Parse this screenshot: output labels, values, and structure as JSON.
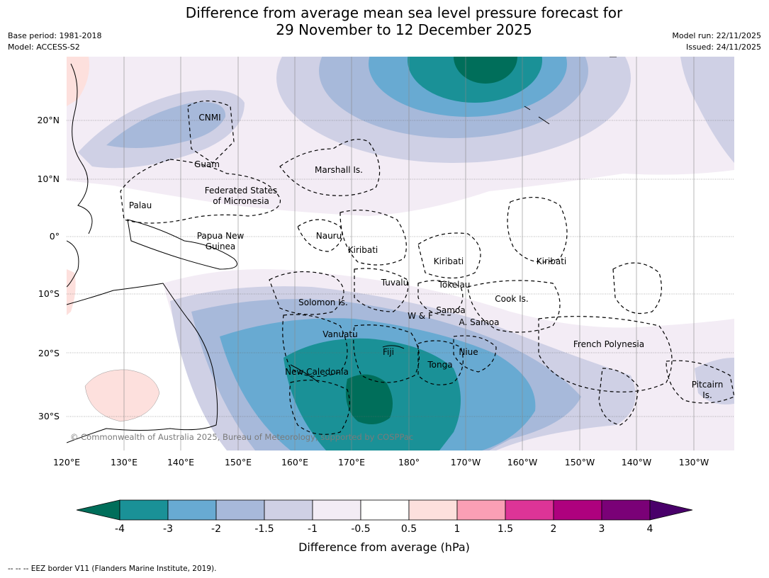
{
  "title": {
    "line1": "Difference from average mean sea level pressure forecast for",
    "line2": "29 November to 12 December 2025"
  },
  "meta": {
    "base_period": "Base period: 1981-2018",
    "model": "Model: ACCESS-S2",
    "model_run": "Model run: 22/11/2025",
    "issued": "Issued: 24/11/2025"
  },
  "map": {
    "lon_labels": [
      "120°E",
      "130°E",
      "140°E",
      "150°E",
      "160°E",
      "170°E",
      "180°",
      "170°W",
      "160°W",
      "150°W",
      "140°W",
      "130°W"
    ],
    "lat_labels": [
      "20°N",
      "10°N",
      "0°",
      "10°S",
      "20°S",
      "30°S"
    ],
    "regions": [
      "CNMI",
      "Guam",
      "Marshall Is.",
      "Federated States",
      "of Micronesia",
      "Palau",
      "Papua New",
      "Guinea",
      "Nauru",
      "Kiribati",
      "Kiribati",
      "Kiribati",
      "Tuvalu",
      "Tokelau",
      "Cook Is.",
      "Solomon Is.",
      "W & F",
      "Samoa",
      "A. Samoa",
      "Vanuatu",
      "Fiji",
      "Niue",
      "French Polynesia",
      "Tonga",
      "New Caledonia",
      "Pitcairn",
      "Is."
    ],
    "copyright": "© Commonwealth of Australia 2025, Bureau of Meteorology, supported by COSPPac"
  },
  "colorbar": {
    "colors": [
      "#006e5a",
      "#1a9197",
      "#68aad2",
      "#a7b9da",
      "#cfd0e5",
      "#f3ecf5",
      "#ffffff",
      "#fde0dd",
      "#fa9fb5",
      "#dd3497",
      "#ae017e",
      "#7a0177",
      "#49006a"
    ],
    "tick_labels": [
      "-4",
      "-3",
      "-2",
      "-1.5",
      "-1",
      "-0.5",
      "0.5",
      "1",
      "1.5",
      "2",
      "3",
      "4"
    ],
    "label": "Difference from average (hPa)"
  },
  "footer": "--  --  -- EEZ border V11 (Flanders Marine Institute, 2019)."
}
